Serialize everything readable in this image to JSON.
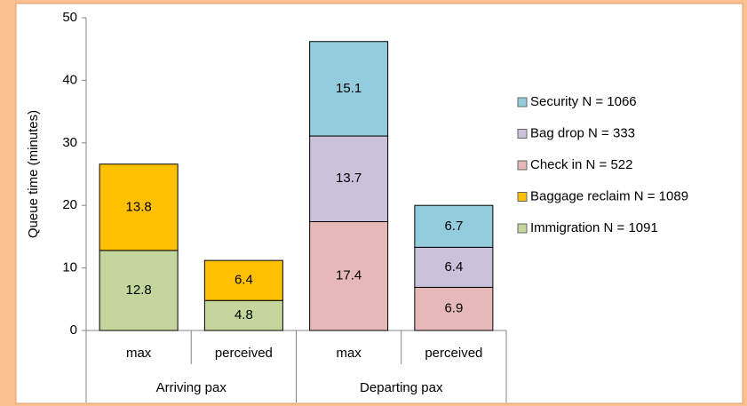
{
  "chart_data": {
    "type": "stacked_bar",
    "y_axis_label": "Queue time (minutes)",
    "categories": [
      "max",
      "perceived",
      "max",
      "perceived"
    ],
    "groups": [
      "Arriving pax",
      "Departing pax"
    ],
    "series": [
      {
        "name": "Immigration N = 1091",
        "color": "#c3d69b",
        "values": [
          12.8,
          4.8,
          null,
          null
        ]
      },
      {
        "name": "Baggage reclaim N = 1089",
        "color": "#ffc000",
        "values": [
          13.8,
          6.4,
          null,
          null
        ]
      },
      {
        "name": "Check in N = 522",
        "color": "#e6b9b8",
        "values": [
          null,
          null,
          17.4,
          6.9
        ]
      },
      {
        "name": "Bag drop N = 333",
        "color": "#ccc1da",
        "values": [
          null,
          null,
          13.7,
          6.4
        ]
      },
      {
        "name": "Security N = 1066",
        "color": "#93cddd",
        "values": [
          null,
          null,
          15.1,
          6.7
        ]
      }
    ],
    "ylim": [
      0,
      50
    ],
    "yticks": [
      0,
      10,
      20,
      30,
      40,
      50
    ],
    "grid": false,
    "legend": "right"
  }
}
